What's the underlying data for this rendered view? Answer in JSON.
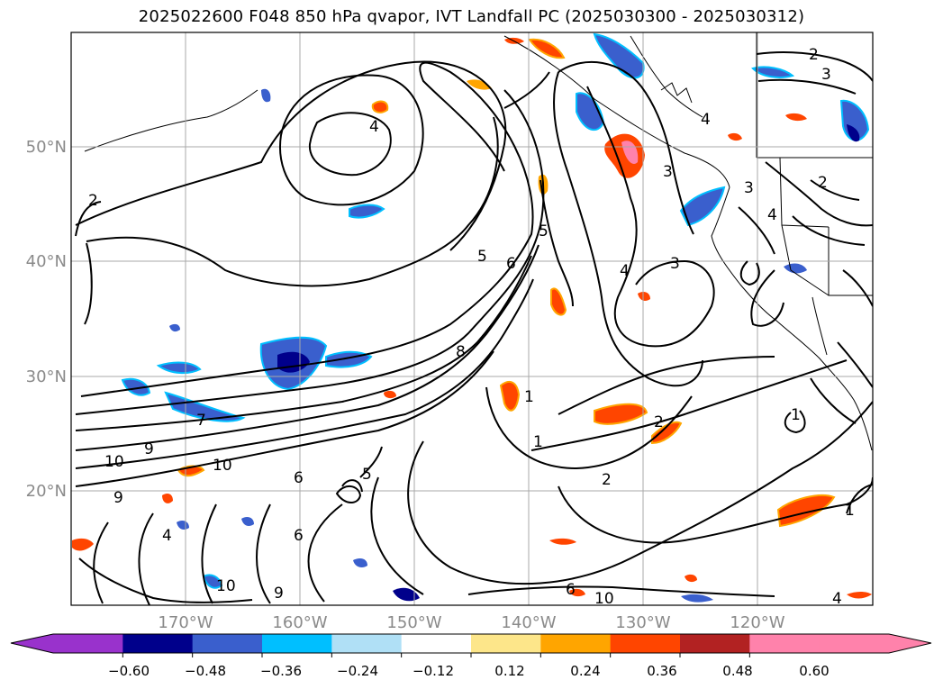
{
  "title": "2025022600 F048 850 hPa qvapor, IVT Landfall PC (2025030300 - 2025030312)",
  "lat_labels": [
    "50°N",
    "40°N",
    "30°N",
    "20°N"
  ],
  "lon_labels": [
    "170°W",
    "160°W",
    "150°W",
    "140°W",
    "130°W",
    "120°W"
  ],
  "colorbar": {
    "ticks": [
      "−0.60",
      "−0.48",
      "−0.36",
      "−0.24",
      "−0.12",
      "0.12",
      "0.24",
      "0.36",
      "0.48",
      "0.60"
    ],
    "colors": [
      "#9932cc",
      "#00008b",
      "#3a5fcd",
      "#00bfff",
      "#b0e0f6",
      "#ffffff",
      "#fde68a",
      "#ffa500",
      "#ff4500",
      "#b22222",
      "#ff82ab",
      "#ff82ab"
    ],
    "extend": "both"
  },
  "contour_labels": [
    {
      "text": "2"
    },
    {
      "text": "3"
    },
    {
      "text": "4"
    },
    {
      "text": "4"
    },
    {
      "text": "2"
    },
    {
      "text": "3"
    },
    {
      "text": "4"
    },
    {
      "text": "5"
    },
    {
      "text": "6"
    },
    {
      "text": "5"
    },
    {
      "text": "3"
    },
    {
      "text": "4"
    },
    {
      "text": "2"
    },
    {
      "text": "8"
    },
    {
      "text": "1"
    },
    {
      "text": "1"
    },
    {
      "text": "2"
    },
    {
      "text": "2"
    },
    {
      "text": "1"
    },
    {
      "text": "7"
    },
    {
      "text": "9"
    },
    {
      "text": "10"
    },
    {
      "text": "10"
    },
    {
      "text": "9"
    },
    {
      "text": "6"
    },
    {
      "text": "5"
    },
    {
      "text": "6"
    },
    {
      "text": "10"
    },
    {
      "text": "9"
    },
    {
      "text": "6"
    },
    {
      "text": "10"
    },
    {
      "text": "4"
    },
    {
      "text": "3"
    },
    {
      "text": "4"
    },
    {
      "text": "1"
    }
  ]
}
